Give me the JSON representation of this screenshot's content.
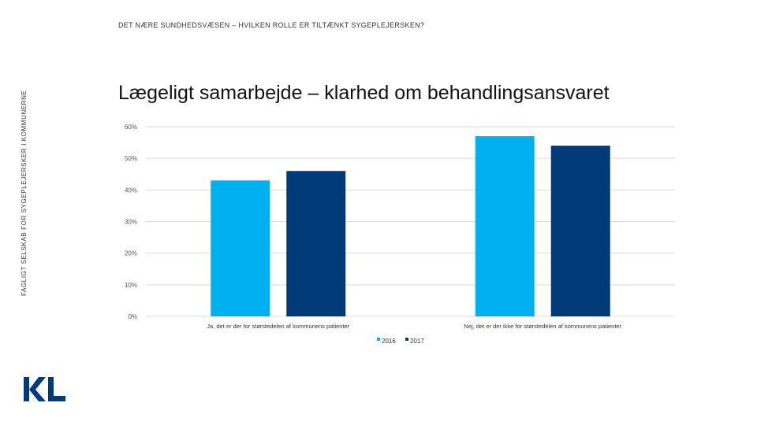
{
  "header": {
    "text": "DET NÆRE SUNDHEDSVÆSEN – HVILKEN ROLLE ER TILTÆNKT SYGEPLEJERSKEN?",
    "side_text": "FAGLIGT SELSKAB FOR SYGEPLEJERSKER I KOMMUNERNE"
  },
  "logo": {
    "text": "KL",
    "color": "#003a78"
  },
  "chart_data": {
    "type": "bar",
    "title": "Lægeligt samarbejde – klarhed om behandlingsansvaret",
    "categories": [
      "Ja, det er der for størstedelen af kommunens patienter",
      "Nej, det er der ikke for størstedelen af kommunens patienter"
    ],
    "series": [
      {
        "name": "2016",
        "values": [
          43,
          57
        ],
        "color": "#00b0f0"
      },
      {
        "name": "2017",
        "values": [
          46,
          54
        ],
        "color": "#003a78"
      }
    ],
    "ylim": [
      0,
      60
    ],
    "yticks": [
      0,
      10,
      20,
      30,
      40,
      50,
      60
    ],
    "ytick_labels": [
      "0%",
      "10%",
      "20%",
      "30%",
      "40%",
      "50%",
      "60%"
    ],
    "grid": true,
    "legend": "bottom"
  }
}
